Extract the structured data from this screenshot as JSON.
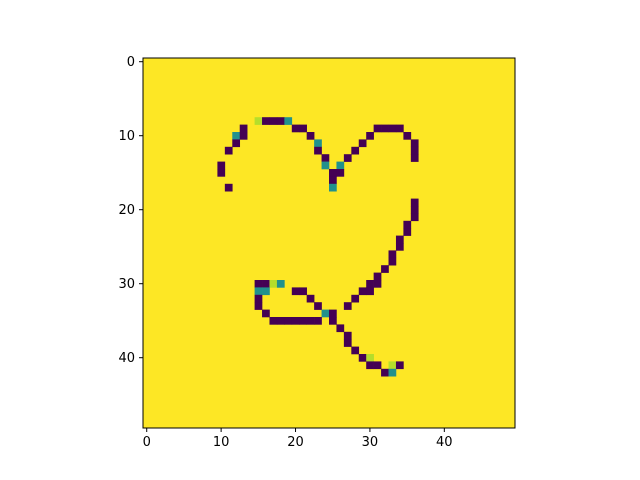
{
  "chart_data": {
    "type": "heatmap",
    "title": "",
    "xlabel": "",
    "ylabel": "",
    "grid": false,
    "legend": "none",
    "rows": 50,
    "cols": 50,
    "xlim": [
      -0.5,
      49.5
    ],
    "ylim": [
      49.5,
      -0.5
    ],
    "x_ticks": [
      0,
      10,
      20,
      30,
      40
    ],
    "y_ticks": [
      0,
      10,
      20,
      30,
      40
    ],
    "colormap": "viridis",
    "colors": {
      "background": "#fde725",
      "dark": "#440154",
      "teal": "#21918c",
      "light_green": "#b5de2b",
      "axis": "#000000"
    },
    "cells": [
      [
        8,
        15,
        "light_green"
      ],
      [
        8,
        16,
        "dark"
      ],
      [
        8,
        17,
        "dark"
      ],
      [
        8,
        18,
        "dark"
      ],
      [
        8,
        19,
        "teal"
      ],
      [
        9,
        13,
        "dark"
      ],
      [
        9,
        20,
        "dark"
      ],
      [
        9,
        21,
        "dark"
      ],
      [
        9,
        31,
        "dark"
      ],
      [
        9,
        32,
        "dark"
      ],
      [
        9,
        33,
        "dark"
      ],
      [
        9,
        34,
        "dark"
      ],
      [
        10,
        12,
        "teal"
      ],
      [
        10,
        13,
        "dark"
      ],
      [
        10,
        22,
        "dark"
      ],
      [
        10,
        30,
        "dark"
      ],
      [
        10,
        35,
        "dark"
      ],
      [
        11,
        12,
        "dark"
      ],
      [
        11,
        23,
        "teal"
      ],
      [
        11,
        29,
        "dark"
      ],
      [
        11,
        36,
        "dark"
      ],
      [
        12,
        11,
        "dark"
      ],
      [
        12,
        23,
        "dark"
      ],
      [
        12,
        28,
        "dark"
      ],
      [
        12,
        36,
        "dark"
      ],
      [
        13,
        24,
        "dark"
      ],
      [
        13,
        27,
        "dark"
      ],
      [
        13,
        36,
        "dark"
      ],
      [
        14,
        10,
        "dark"
      ],
      [
        14,
        24,
        "teal"
      ],
      [
        14,
        26,
        "teal"
      ],
      [
        15,
        10,
        "dark"
      ],
      [
        15,
        25,
        "dark"
      ],
      [
        15,
        26,
        "dark"
      ],
      [
        16,
        25,
        "dark"
      ],
      [
        17,
        11,
        "dark"
      ],
      [
        17,
        25,
        "teal"
      ],
      [
        19,
        36,
        "dark"
      ],
      [
        20,
        36,
        "dark"
      ],
      [
        21,
        36,
        "dark"
      ],
      [
        22,
        35,
        "dark"
      ],
      [
        23,
        35,
        "dark"
      ],
      [
        24,
        34,
        "dark"
      ],
      [
        25,
        34,
        "dark"
      ],
      [
        26,
        33,
        "dark"
      ],
      [
        27,
        33,
        "dark"
      ],
      [
        28,
        32,
        "dark"
      ],
      [
        29,
        31,
        "dark"
      ],
      [
        30,
        15,
        "dark"
      ],
      [
        30,
        16,
        "dark"
      ],
      [
        30,
        17,
        "light_green"
      ],
      [
        30,
        18,
        "teal"
      ],
      [
        30,
        30,
        "dark"
      ],
      [
        30,
        31,
        "dark"
      ],
      [
        31,
        15,
        "teal"
      ],
      [
        31,
        16,
        "teal"
      ],
      [
        31,
        20,
        "dark"
      ],
      [
        31,
        21,
        "dark"
      ],
      [
        31,
        29,
        "dark"
      ],
      [
        31,
        30,
        "dark"
      ],
      [
        32,
        15,
        "dark"
      ],
      [
        32,
        22,
        "dark"
      ],
      [
        32,
        28,
        "dark"
      ],
      [
        33,
        15,
        "dark"
      ],
      [
        33,
        23,
        "dark"
      ],
      [
        33,
        27,
        "dark"
      ],
      [
        34,
        16,
        "dark"
      ],
      [
        34,
        24,
        "teal"
      ],
      [
        34,
        25,
        "dark"
      ],
      [
        35,
        17,
        "dark"
      ],
      [
        35,
        18,
        "dark"
      ],
      [
        35,
        19,
        "dark"
      ],
      [
        35,
        20,
        "dark"
      ],
      [
        35,
        21,
        "dark"
      ],
      [
        35,
        22,
        "dark"
      ],
      [
        35,
        23,
        "dark"
      ],
      [
        35,
        25,
        "dark"
      ],
      [
        36,
        26,
        "dark"
      ],
      [
        37,
        27,
        "dark"
      ],
      [
        38,
        27,
        "dark"
      ],
      [
        39,
        28,
        "dark"
      ],
      [
        40,
        29,
        "dark"
      ],
      [
        40,
        30,
        "light_green"
      ],
      [
        41,
        30,
        "dark"
      ],
      [
        41,
        31,
        "dark"
      ],
      [
        41,
        33,
        "light_green"
      ],
      [
        41,
        34,
        "dark"
      ],
      [
        42,
        32,
        "dark"
      ],
      [
        42,
        33,
        "teal"
      ]
    ]
  }
}
